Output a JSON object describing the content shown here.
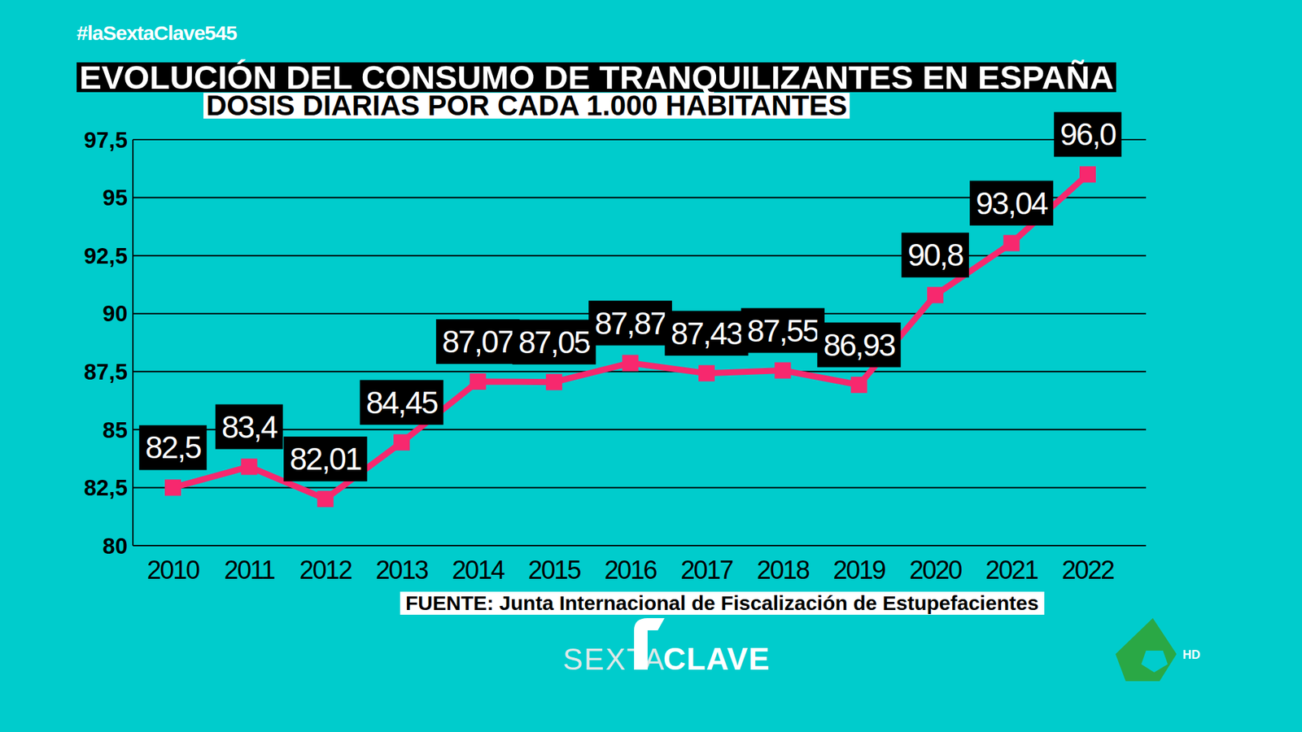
{
  "chart_data": {
    "type": "line",
    "title": "EVOLUCIÓN DEL CONSUMO DE TRANQUILIZANTES EN ESPAÑA",
    "subtitle": "DOSIS DIARIAS POR CADA 1.000 HABITANTES",
    "categories": [
      "2010",
      "2011",
      "2012",
      "2013",
      "2014",
      "2015",
      "2016",
      "2017",
      "2018",
      "2019",
      "2020",
      "2021",
      "2022"
    ],
    "values": [
      82.5,
      83.4,
      82.01,
      84.45,
      87.07,
      87.05,
      87.87,
      87.43,
      87.55,
      86.93,
      90.8,
      93.04,
      96.0
    ],
    "value_labels": [
      "82,5",
      "83,4",
      "82,01",
      "84,45",
      "87,07",
      "87,05",
      "87,87",
      "87,43",
      "87,55",
      "86,93",
      "90,8",
      "93,04",
      "96,0"
    ],
    "color": "#f7286e",
    "marker": "square",
    "ylim": [
      80,
      97.5
    ],
    "yticks": [
      80,
      {
        "value": 82.5,
        "label": "82,5"
      },
      85,
      {
        "value": 87.5,
        "label": "87,5"
      },
      90,
      {
        "value": 92.5,
        "label": "92,5"
      },
      95,
      {
        "value": 97.5,
        "label": "97,5"
      }
    ],
    "grid": true,
    "data_labels": true,
    "annotations": [
      "#laSextaClave545",
      "FUENTE: Junta Internacional de Fiscalización de Estupefacientes",
      "SEXTA",
      "CLAVE",
      "HD"
    ]
  }
}
